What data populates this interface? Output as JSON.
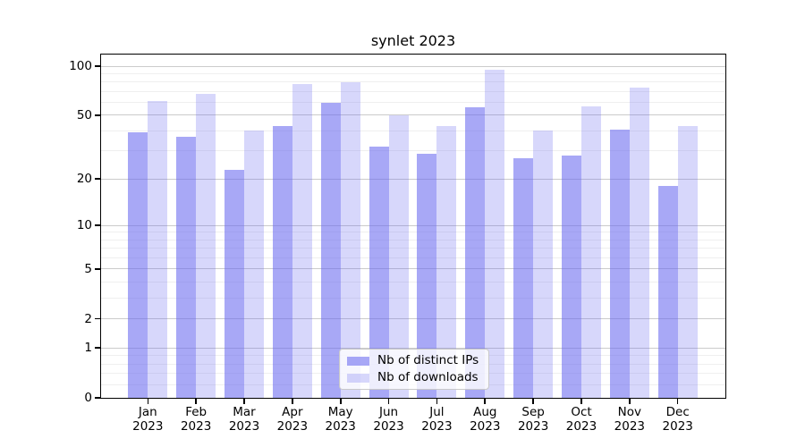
{
  "title": "synlet 2023",
  "chart_data": {
    "type": "bar",
    "title": "synlet 2023",
    "categories": [
      "Jan",
      "Feb",
      "Mar",
      "Apr",
      "May",
      "Jun",
      "Jul",
      "Aug",
      "Sep",
      "Oct",
      "Nov",
      "Dec"
    ],
    "category_year_label": "2023",
    "series": [
      {
        "name": "Nb of distinct IPs",
        "values": [
          39,
          37,
          23,
          43,
          60,
          32,
          29,
          56,
          27,
          28,
          41,
          18
        ]
      },
      {
        "name": "Nb of downloads",
        "values": [
          61,
          68,
          40,
          78,
          80,
          50,
          43,
          95,
          40,
          57,
          74,
          43
        ]
      }
    ],
    "xlabel": "",
    "ylabel": "",
    "yscale": "log1p",
    "ylim": [
      0,
      117
    ],
    "y_major_ticks": [
      0,
      1,
      2,
      5,
      10,
      20,
      50,
      100
    ],
    "y_minor_gridlines": [
      0.2,
      0.4,
      0.6,
      0.8,
      3,
      4,
      6,
      7,
      8,
      9,
      30,
      40,
      60,
      70,
      80,
      90
    ],
    "grid": true,
    "legend_position": "lower center"
  },
  "legend": {
    "items": [
      {
        "label": "Nb of distinct IPs"
      },
      {
        "label": "Nb of downloads"
      }
    ]
  },
  "colors": {
    "bar_base": "#6666f0",
    "bar_distinct_ips": "rgba(102,102,240,0.57)",
    "bar_downloads": "rgba(102,102,240,0.26)",
    "grid_major": "#cbcbcb",
    "grid_minor": "#efefef",
    "axis": "#000000"
  }
}
